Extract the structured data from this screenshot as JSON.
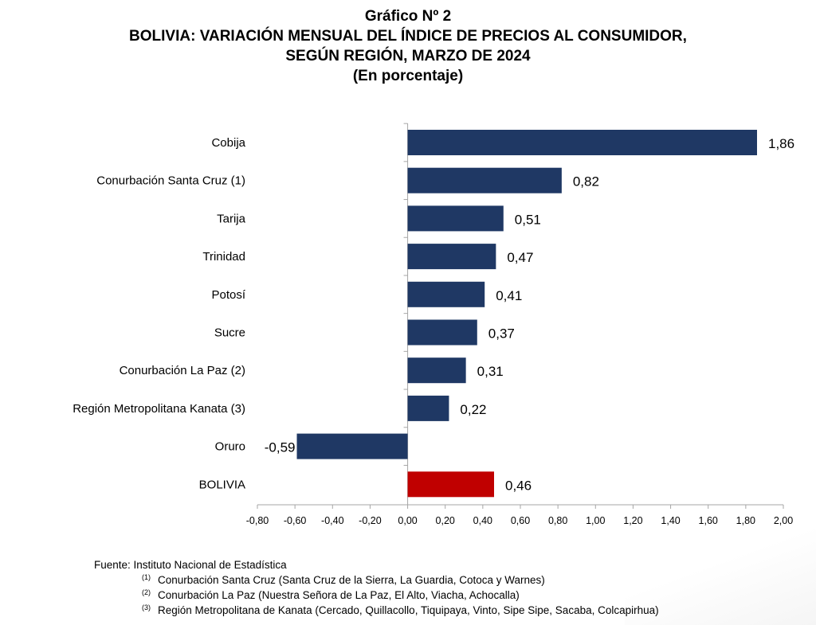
{
  "header": {
    "line1": "Gráfico Nº 2",
    "line2": "BOLIVIA: VARIACIÓN MENSUAL DEL ÍNDICE DE PRECIOS AL CONSUMIDOR,",
    "line3": "SEGÚN REGIÓN, MARZO DE 2024",
    "line4": "(En porcentaje)"
  },
  "chart_data": {
    "type": "bar",
    "orientation": "horizontal",
    "title": "BOLIVIA: VARIACIÓN MENSUAL DEL ÍNDICE DE PRECIOS AL CONSUMIDOR, SEGÚN REGIÓN, MARZO DE 2024",
    "subtitle": "(En porcentaje)",
    "categories": [
      "Cobija",
      "Conurbación Santa Cruz (1)",
      "Tarija",
      "Trinidad",
      "Potosí",
      "Sucre",
      "Conurbación La Paz (2)",
      "Región Metropolitana Kanata (3)",
      "Oruro",
      "BOLIVIA"
    ],
    "values": [
      1.86,
      0.82,
      0.51,
      0.47,
      0.41,
      0.37,
      0.31,
      0.22,
      -0.59,
      0.46
    ],
    "value_labels": [
      "1,86",
      "0,82",
      "0,51",
      "0,47",
      "0,41",
      "0,37",
      "0,31",
      "0,22",
      "-0,59",
      "0,46"
    ],
    "xlim": [
      -0.8,
      2.0
    ],
    "xticks": [
      -0.8,
      -0.6,
      -0.4,
      -0.2,
      0.0,
      0.2,
      0.4,
      0.6,
      0.8,
      1.0,
      1.2,
      1.4,
      1.6,
      1.8,
      2.0
    ],
    "xtick_labels": [
      "-0,80",
      "-0,60",
      "-0,40",
      "-0,20",
      "0,00",
      "0,20",
      "0,40",
      "0,60",
      "0,80",
      "1,00",
      "1,20",
      "1,40",
      "1,60",
      "1,80",
      "2,00"
    ],
    "grid": false,
    "colors": {
      "default": "#1f3864",
      "highlight": "#c00000"
    },
    "highlight_category": "BOLIVIA"
  },
  "footer": {
    "source": "Fuente: Instituto Nacional de Estadística",
    "notes": [
      {
        "mark": "(1)",
        "text": "Conurbación Santa Cruz (Santa Cruz de la Sierra, La Guardia, Cotoca y Warnes)"
      },
      {
        "mark": "(2)",
        "text": "Conurbación La Paz (Nuestra Señora de La Paz, El Alto, Viacha, Achocalla)"
      },
      {
        "mark": "(3)",
        "text": "Región Metropolitana de Kanata (Cercado, Quillacollo, Tiquipaya, Vinto, Sipe Sipe, Sacaba, Colcapirhua)"
      }
    ]
  }
}
